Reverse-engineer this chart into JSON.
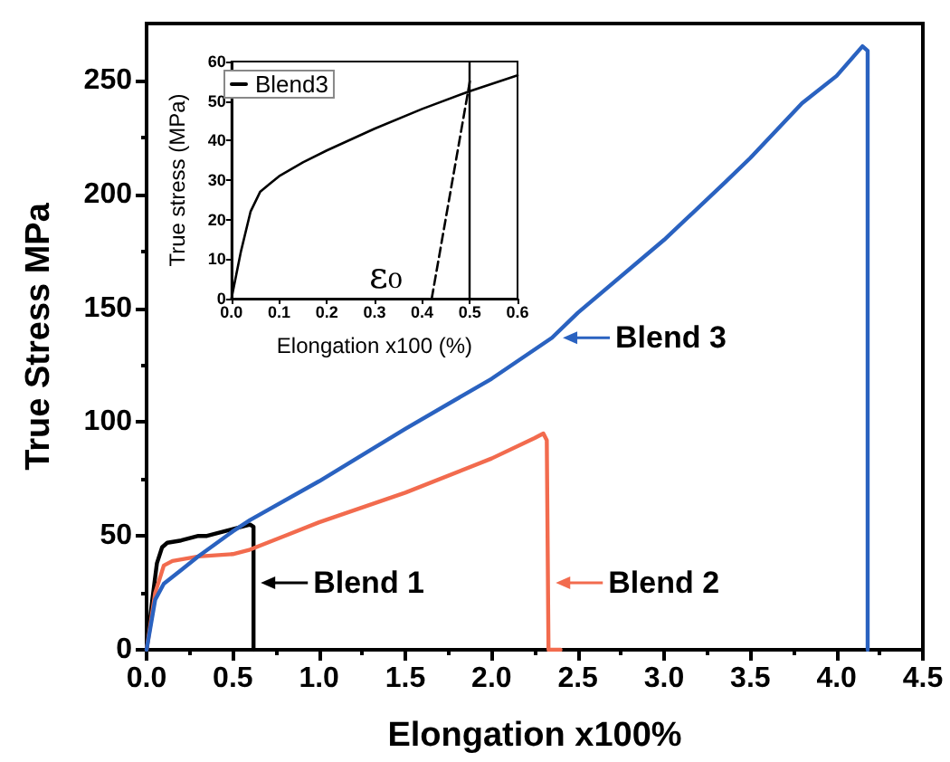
{
  "chart_data": [
    {
      "type": "line",
      "xlabel": "Elongation x100%",
      "ylabel": "True Stress MPa",
      "xlim": [
        0,
        4.5
      ],
      "ylim": [
        0,
        275
      ],
      "xticks": [
        {
          "value": 0,
          "label": "0.0"
        },
        {
          "value": 0.5,
          "label": "0.5"
        },
        {
          "value": 1,
          "label": "1.0"
        },
        {
          "value": 1.5,
          "label": "1.5"
        },
        {
          "value": 2,
          "label": "2.0"
        },
        {
          "value": 2.5,
          "label": "2.5"
        },
        {
          "value": 3,
          "label": "3.0"
        },
        {
          "value": 3.5,
          "label": "3.5"
        },
        {
          "value": 4,
          "label": "4.0"
        },
        {
          "value": 4.5,
          "label": "4.5"
        }
      ],
      "yticks": [
        0,
        50,
        100,
        150,
        200,
        250
      ],
      "grid": false,
      "legend": "bottom left",
      "marker": "none",
      "line_style": "solid",
      "series": [
        {
          "name": "Blend 1",
          "color": "#000000",
          "x": [
            0,
            0.03,
            0.06,
            0.09,
            0.12,
            0.2,
            0.3,
            0.35,
            0.45,
            0.55,
            0.6,
            0.62,
            0.62
          ],
          "values": [
            0,
            20,
            38,
            45,
            47,
            48,
            50,
            50,
            52,
            54,
            55,
            54,
            0
          ]
        },
        {
          "name": "Blend 2",
          "color": "#f26b4e",
          "x": [
            0,
            0.05,
            0.1,
            0.15,
            0.3,
            0.5,
            0.6,
            0.8,
            1.0,
            1.5,
            2.0,
            2.25,
            2.3,
            2.32,
            2.33,
            2.4
          ],
          "values": [
            0,
            25,
            37,
            39,
            41,
            42,
            44,
            50,
            56,
            69,
            84,
            93,
            95,
            92,
            0,
            0
          ]
        },
        {
          "name": "Blend 3",
          "color": "#2a62c0",
          "x": [
            0,
            0.05,
            0.1,
            0.2,
            0.3,
            0.5,
            0.6,
            1.0,
            1.5,
            2.0,
            2.35,
            2.5,
            3.0,
            3.35,
            3.5,
            3.8,
            4.0,
            4.15,
            4.18,
            4.18
          ],
          "values": [
            0,
            22,
            29,
            35,
            41,
            52,
            57,
            74,
            97,
            119,
            137,
            148,
            180,
            205,
            216,
            240,
            252,
            265,
            263,
            0
          ]
        }
      ]
    },
    {
      "type": "line",
      "xlabel": "Elongation x100 (%)",
      "ylabel": "True stress (MPa)",
      "xlim": [
        0,
        0.6
      ],
      "ylim": [
        0,
        60
      ],
      "xticks": [
        {
          "value": 0,
          "label": "0.0"
        },
        0.1,
        0.2,
        0.3,
        0.4,
        0.5,
        0.6
      ],
      "yticks": [
        0,
        10,
        20,
        30,
        40,
        50,
        60
      ],
      "grid": false,
      "legend": "top left",
      "marker": "none",
      "annotations": [
        "ε₀"
      ],
      "ref_lines": [
        {
          "axis": "x",
          "value": 0.5,
          "color": "#000000",
          "line_style": "solid"
        }
      ],
      "series": [
        {
          "name": "Blend3",
          "color": "#000000",
          "line_style": "solid",
          "x": [
            0,
            0.02,
            0.04,
            0.06,
            0.08,
            0.1,
            0.15,
            0.2,
            0.3,
            0.4,
            0.5,
            0.6
          ],
          "values": [
            0,
            12,
            22,
            27,
            29,
            31,
            34.5,
            37.5,
            43,
            48,
            52.5,
            56.5
          ]
        },
        {
          "color": "#000000",
          "line_style": "dashed",
          "x": [
            0.42,
            0.5
          ],
          "values": [
            0,
            55
          ]
        }
      ]
    }
  ]
}
